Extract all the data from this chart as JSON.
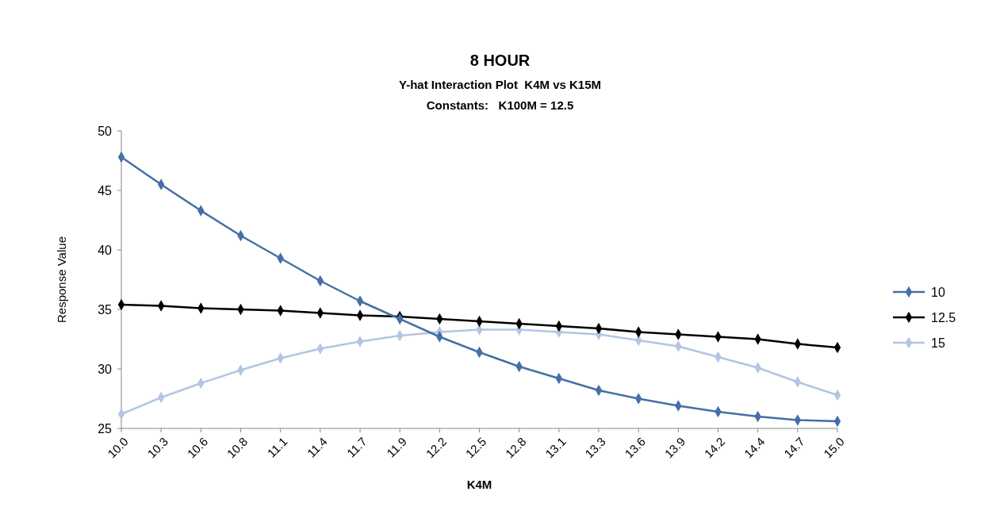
{
  "chart_data": {
    "type": "line",
    "title": "8 HOUR",
    "subtitle": "Y-hat Interaction Plot  K4M vs K15M",
    "annotations": [
      "Constants:   K100M = 12.5"
    ],
    "xlabel": "K4M",
    "ylabel": "Response Value",
    "categories": [
      "10.0",
      "10.3",
      "10.6",
      "10.8",
      "11.1",
      "11.4",
      "11.7",
      "11.9",
      "12.2",
      "12.5",
      "12.8",
      "13.1",
      "13.3",
      "13.6",
      "13.9",
      "14.2",
      "14.4",
      "14.7",
      "15.0"
    ],
    "series": [
      {
        "name": "10",
        "color": "#456fa6",
        "values": [
          47.8,
          45.5,
          43.3,
          41.2,
          39.3,
          37.4,
          35.7,
          34.2,
          32.7,
          31.4,
          30.2,
          29.2,
          28.2,
          27.5,
          26.9,
          26.4,
          26.0,
          25.7,
          25.6
        ]
      },
      {
        "name": "12.5",
        "color": "#000000",
        "values": [
          35.4,
          35.3,
          35.1,
          35.0,
          34.9,
          34.7,
          34.5,
          34.4,
          34.2,
          34.0,
          33.8,
          33.6,
          33.4,
          33.1,
          32.9,
          32.7,
          32.5,
          32.1,
          31.8
        ]
      },
      {
        "name": "15",
        "color": "#b3c5e3",
        "values": [
          26.2,
          27.6,
          28.8,
          29.9,
          30.9,
          31.7,
          32.3,
          32.8,
          33.1,
          33.3,
          33.3,
          33.1,
          32.9,
          32.4,
          31.9,
          31.0,
          30.1,
          28.9,
          27.8
        ]
      }
    ],
    "ylim": [
      25,
      50
    ],
    "yticks": [
      25,
      30,
      35,
      40,
      45,
      50
    ],
    "grid": false,
    "legend": "right",
    "marker": "diamond",
    "line_style": "solid"
  }
}
